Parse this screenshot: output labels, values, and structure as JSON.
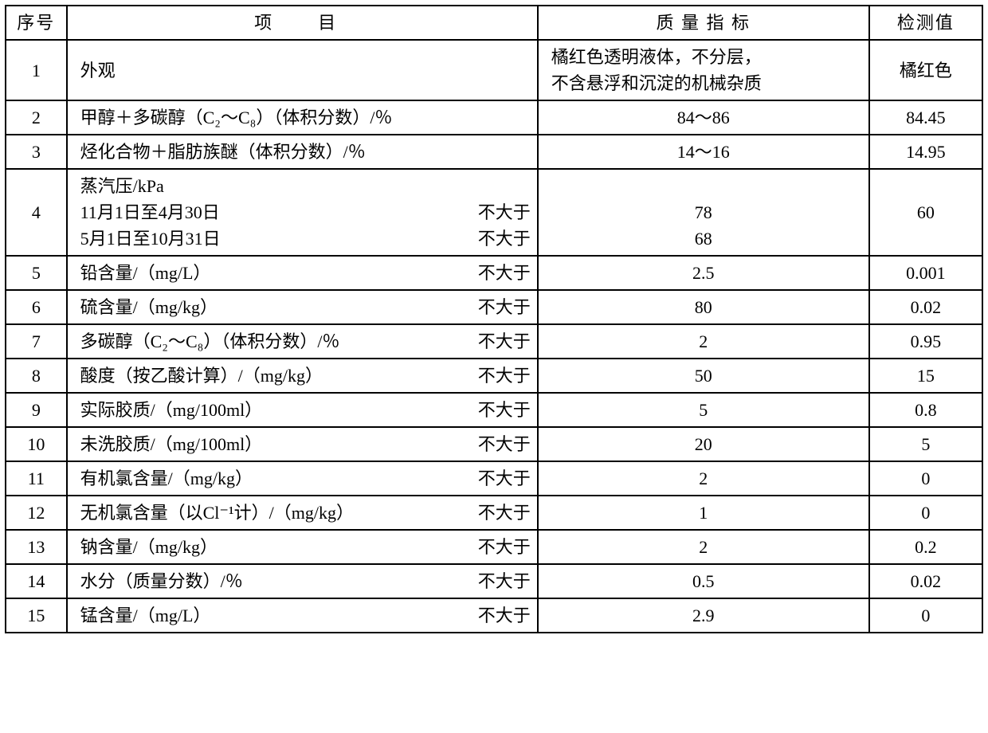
{
  "columns": {
    "seq": "序号",
    "item": "项　目",
    "std": "质 量 指 标",
    "val": "检测值"
  },
  "qualifier_not_greater": "不大于",
  "rows": [
    {
      "seq": "1",
      "item_main": "外观",
      "item_qual": "",
      "std": "橘红色透明液体，不分层，\n不含悬浮和沉淀的机械杂质",
      "std_align": "left",
      "val": "橘红色"
    },
    {
      "seq": "2",
      "item_main": "甲醇＋多碳醇（C₂～C₈）（体积分数）/％",
      "item_qual": "",
      "std": "84～86",
      "val": "84.45"
    },
    {
      "seq": "3",
      "item_main": "烃化合物＋脂肪族醚（体积分数）/％",
      "item_qual": "",
      "std": "14～16",
      "val": "14.95"
    },
    {
      "seq": "4",
      "item_lines": [
        {
          "main": "蒸汽压/kPa",
          "qual": ""
        },
        {
          "main": "11月1日至4月30日",
          "qual": "不大于"
        },
        {
          "main": "5月1日至10月31日",
          "qual": "不大于"
        }
      ],
      "std_lines": [
        "",
        "78",
        "68"
      ],
      "val": "60"
    },
    {
      "seq": "5",
      "item_main": "铅含量/（mg/L）",
      "item_qual": "不大于",
      "std": "2.5",
      "val": "0.001"
    },
    {
      "seq": "6",
      "item_main": "硫含量/（mg/kg）",
      "item_qual": "不大于",
      "std": "80",
      "val": "0.02"
    },
    {
      "seq": "7",
      "item_main": "多碳醇（C₂～C₈）（体积分数）/％",
      "item_qual": "不大于",
      "std": "2",
      "val": "0.95"
    },
    {
      "seq": "8",
      "item_main": "酸度（按乙酸计算）/（mg/kg）",
      "item_qual": "不大于",
      "std": "50",
      "val": "15"
    },
    {
      "seq": "9",
      "item_main": "实际胶质/（mg/100ml）",
      "item_qual": "不大于",
      "std": "5",
      "val": "0.8"
    },
    {
      "seq": "10",
      "item_main": "未洗胶质/（mg/100ml）",
      "item_qual": "不大于",
      "std": "20",
      "val": "5"
    },
    {
      "seq": "11",
      "item_main": "有机氯含量/（mg/kg）",
      "item_qual": "不大于",
      "std": "2",
      "val": "0"
    },
    {
      "seq": "12",
      "item_main": "无机氯含量（以Cl⁻¹计）/（mg/kg）",
      "item_qual": "不大于",
      "std": "1",
      "val": "0"
    },
    {
      "seq": "13",
      "item_main": "钠含量/（mg/kg）",
      "item_qual": "不大于",
      "std": "2",
      "val": "0.2"
    },
    {
      "seq": "14",
      "item_main": "水分（质量分数）/％",
      "item_qual": "不大于",
      "std": "0.5",
      "val": "0.02"
    },
    {
      "seq": "15",
      "item_main": "锰含量/（mg/L）",
      "item_qual": "不大于",
      "std": "2.9",
      "val": "0"
    }
  ]
}
